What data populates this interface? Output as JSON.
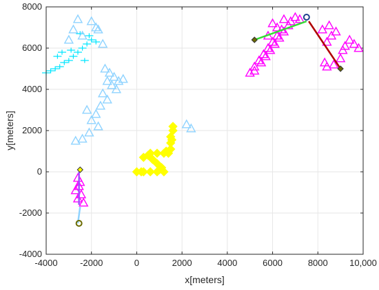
{
  "chart_data": {
    "type": "scatter",
    "title": "",
    "xlabel": "x[meters]",
    "ylabel": "y[meters]",
    "xlim": [
      -4000,
      10000
    ],
    "ylim": [
      -4000,
      8000
    ],
    "grid": true,
    "legend": "none",
    "x_ticks": [
      -4000,
      -2000,
      0,
      2000,
      4000,
      6000,
      8000,
      10000
    ],
    "x_tick_labels": [
      "-4000",
      "-2000",
      "0",
      "2000",
      "4000",
      "6000",
      "8000",
      "10,000"
    ],
    "y_ticks": [
      -4000,
      -2000,
      0,
      2000,
      4000,
      6000,
      8000
    ],
    "y_tick_labels": [
      "-4000",
      "-2000",
      "0",
      "2000",
      "4000",
      "6000",
      "8000"
    ],
    "colors": {
      "magenta": "#ff00ff",
      "magenta_edge": "#c000c0",
      "yellow": "#ffff00",
      "yellow_edge": "#e0e000",
      "cyan": "#00e5ff",
      "lightblue": "#8fd3ff",
      "green": "#33dd33",
      "darkred": "#b00000",
      "purple": "#a050ff",
      "olive": "#6b6b00",
      "navy": "#1f3f8f"
    },
    "series": [
      {
        "marker": "triangle",
        "color": "magenta",
        "points": [
          [
            -2600,
            -300
          ],
          [
            -2550,
            -700
          ],
          [
            -2450,
            -1100
          ],
          [
            -2600,
            -1300
          ],
          [
            -2350,
            -1500
          ],
          [
            -2700,
            -900
          ],
          [
            -2500,
            -500
          ],
          [
            5000,
            4800
          ],
          [
            5200,
            5100
          ],
          [
            5400,
            5400
          ],
          [
            5600,
            5700
          ],
          [
            5800,
            6000
          ],
          [
            6000,
            6300
          ],
          [
            6200,
            6600
          ],
          [
            6400,
            6900
          ],
          [
            5200,
            4900
          ],
          [
            5500,
            5300
          ],
          [
            5700,
            5600
          ],
          [
            5900,
            5900
          ],
          [
            6100,
            6200
          ],
          [
            6300,
            6500
          ],
          [
            6500,
            6800
          ],
          [
            6700,
            7100
          ],
          [
            6000,
            7200
          ],
          [
            6500,
            7400
          ],
          [
            7000,
            7500
          ],
          [
            5800,
            6600
          ],
          [
            6200,
            7000
          ],
          [
            6800,
            7300
          ],
          [
            7200,
            7400
          ],
          [
            8400,
            6300
          ],
          [
            8600,
            6600
          ],
          [
            8800,
            6800
          ],
          [
            8400,
            5100
          ],
          [
            8700,
            5200
          ],
          [
            9000,
            5500
          ],
          [
            9200,
            6100
          ],
          [
            9400,
            6400
          ],
          [
            9600,
            6200
          ],
          [
            9800,
            6000
          ],
          [
            8200,
            6900
          ],
          [
            8500,
            7100
          ],
          [
            8300,
            5300
          ],
          [
            9100,
            5900
          ]
        ]
      },
      {
        "marker": "diamond",
        "color": "yellow",
        "points": [
          [
            0,
            0
          ],
          [
            300,
            0
          ],
          [
            600,
            0
          ],
          [
            900,
            0
          ],
          [
            1200,
            0
          ],
          [
            1100,
            200
          ],
          [
            900,
            400
          ],
          [
            700,
            600
          ],
          [
            500,
            800
          ],
          [
            600,
            900
          ],
          [
            900,
            900
          ],
          [
            1200,
            900
          ],
          [
            1400,
            900
          ],
          [
            1500,
            1100
          ],
          [
            1500,
            1400
          ],
          [
            1500,
            1700
          ],
          [
            1600,
            2000
          ],
          [
            1600,
            2200
          ],
          [
            200,
            0
          ],
          [
            1000,
            100
          ],
          [
            300,
            700
          ],
          [
            1300,
            1000
          ],
          [
            1550,
            1550
          ]
        ]
      },
      {
        "marker": "cross",
        "color": "cyan",
        "points": [
          [
            -4000,
            4800
          ],
          [
            -3800,
            4900
          ],
          [
            -3600,
            5000
          ],
          [
            -3400,
            5100
          ],
          [
            -3200,
            5300
          ],
          [
            -3000,
            5400
          ],
          [
            -2800,
            5600
          ],
          [
            -2600,
            5800
          ],
          [
            -2400,
            6000
          ],
          [
            -2200,
            6200
          ],
          [
            -2000,
            6400
          ],
          [
            -3500,
            5600
          ],
          [
            -2900,
            5900
          ],
          [
            -2500,
            6700
          ],
          [
            -2100,
            6600
          ],
          [
            -1800,
            6300
          ],
          [
            -2300,
            5400
          ],
          [
            -3300,
            5800
          ]
        ]
      },
      {
        "marker": "triangle",
        "color": "lightblue",
        "points": [
          [
            -1400,
            5000
          ],
          [
            -1200,
            4800
          ],
          [
            -1000,
            4600
          ],
          [
            -800,
            4400
          ],
          [
            -1300,
            4400
          ],
          [
            -1100,
            4200
          ],
          [
            -1500,
            3800
          ],
          [
            -1300,
            3500
          ],
          [
            -1600,
            3200
          ],
          [
            -1800,
            2800
          ],
          [
            -2000,
            2500
          ],
          [
            -2400,
            1600
          ],
          [
            -2100,
            1900
          ],
          [
            -2700,
            1500
          ],
          [
            -600,
            4500
          ],
          [
            -900,
            4000
          ],
          [
            -1700,
            2200
          ],
          [
            -2200,
            3000
          ],
          [
            -1800,
            7000
          ],
          [
            -2000,
            7300
          ],
          [
            -1700,
            6900
          ],
          [
            -2400,
            6600
          ],
          [
            -2800,
            6900
          ],
          [
            -3000,
            6400
          ],
          [
            2200,
            2300
          ],
          [
            2400,
            2100
          ],
          [
            -1500,
            6200
          ],
          [
            -2600,
            7400
          ]
        ]
      }
    ],
    "paths": [
      {
        "color": "purple",
        "points": [
          [
            -2550,
            0
          ],
          [
            -2550,
            -1600
          ]
        ]
      },
      {
        "color": "lightblue",
        "points": [
          [
            -2500,
            -1700
          ],
          [
            -2600,
            -2500
          ]
        ]
      },
      {
        "color": "green",
        "points": [
          [
            5200,
            6400
          ],
          [
            7500,
            7300
          ]
        ]
      },
      {
        "color": "darkred",
        "points": [
          [
            7600,
            7300
          ],
          [
            9000,
            5000
          ]
        ]
      }
    ],
    "markers": [
      {
        "shape": "circle",
        "color": "olive",
        "x": -2550,
        "y": -2500
      },
      {
        "shape": "diamond",
        "color": "olive",
        "x": 5200,
        "y": 6400
      },
      {
        "shape": "circle",
        "color": "navy",
        "x": 7500,
        "y": 7500
      },
      {
        "shape": "diamond",
        "color": "olive",
        "x": 9000,
        "y": 5000
      },
      {
        "shape": "diamond",
        "color": "yellow",
        "x": -2500,
        "y": 100
      }
    ]
  }
}
